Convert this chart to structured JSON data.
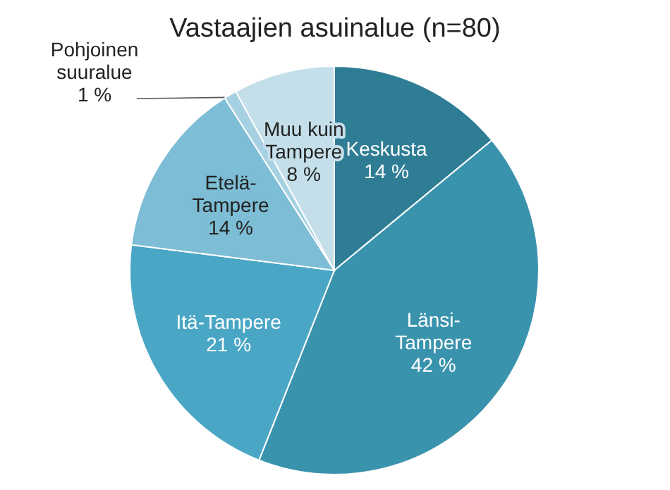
{
  "chart_data": {
    "type": "pie",
    "title": "Vastaajien asuinalue (n=80)",
    "categories": [
      "Keskusta",
      "Länsi-Tampere",
      "Itä-Tampere",
      "Etelä-Tampere",
      "Pohjoinen suuralue",
      "Muu kuin Tampere"
    ],
    "values": [
      14,
      42,
      21,
      14,
      1,
      8
    ],
    "value_labels": [
      "14 %",
      "42 %",
      "21 %",
      "14 %",
      "1 %",
      "8 %"
    ],
    "colors": [
      "#2f7d95",
      "#3a93ad",
      "#4aa6c5",
      "#7dbdd5",
      "#a6d1e2",
      "#c4dfea"
    ]
  }
}
